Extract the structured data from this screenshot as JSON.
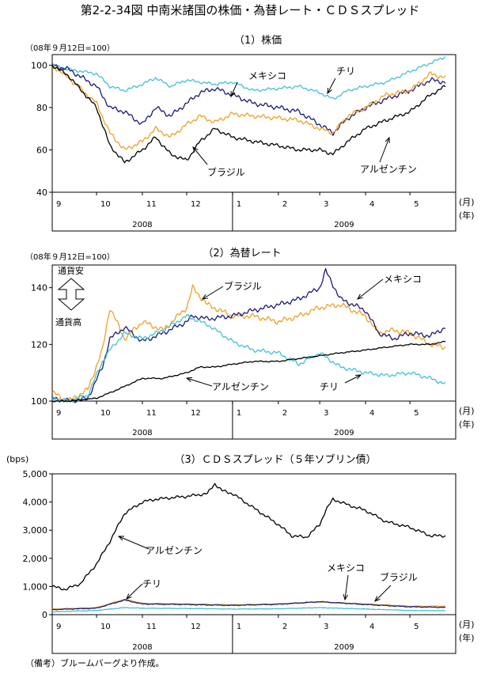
{
  "figure_title": "第2-2-34図 中南米諸国の株価・為替レート・ＣＤＳスプレッド",
  "note": "（備考）ブルームバーグより作成。",
  "month_unit": "(月)",
  "year_unit": "(年)",
  "colors": {
    "mexico": "#1a1a7a",
    "chile": "#40c0d8",
    "brazil": "#f0a020",
    "argentina": "#000000"
  },
  "chart_data": [
    {
      "type": "line",
      "title": "（1）株価",
      "ylabel": "（08年９月12日=100）",
      "ylim": [
        40,
        105
      ],
      "yticks": [
        40,
        60,
        80,
        100
      ],
      "ytick_labels": [
        "40",
        "60",
        "80",
        "100"
      ],
      "x_start": "2008-09-01",
      "x_end": "2009-05-31",
      "month_ticks": [
        {
          "date": "2008-09-01",
          "label": "9"
        },
        {
          "date": "2008-10-01",
          "label": "10"
        },
        {
          "date": "2008-11-01",
          "label": "11"
        },
        {
          "date": "2008-12-01",
          "label": "12"
        },
        {
          "date": "2009-01-01",
          "label": "1"
        },
        {
          "date": "2009-02-01",
          "label": "2"
        },
        {
          "date": "2009-03-01",
          "label": "3"
        },
        {
          "date": "2009-04-01",
          "label": "4"
        },
        {
          "date": "2009-05-01",
          "label": "5"
        }
      ],
      "years": [
        {
          "from": "2008-09-01",
          "to": "2008-12-31",
          "label": "2008"
        },
        {
          "from": "2009-01-01",
          "to": "2009-05-31",
          "label": "2009"
        }
      ],
      "series": [
        {
          "name": "チリ",
          "color": "#40c0d8",
          "dates": [
            "2008-09-01",
            "2008-09-12",
            "2008-10-01",
            "2008-10-10",
            "2008-10-20",
            "2008-11-01",
            "2008-11-10",
            "2008-11-20",
            "2008-12-01",
            "2008-12-10",
            "2008-12-20",
            "2009-01-01",
            "2009-01-15",
            "2009-02-01",
            "2009-02-15",
            "2009-03-01",
            "2009-03-10",
            "2009-03-20",
            "2009-04-01",
            "2009-04-15",
            "2009-05-01",
            "2009-05-15",
            "2009-05-25"
          ],
          "values": [
            100,
            98,
            96,
            90,
            88,
            91,
            94,
            90,
            93,
            92,
            91,
            92,
            88,
            89,
            90,
            87,
            84,
            88,
            90,
            92,
            97,
            101,
            104
          ]
        },
        {
          "name": "メキシコ",
          "color": "#1a1a7a",
          "dates": [
            "2008-09-01",
            "2008-09-12",
            "2008-10-01",
            "2008-10-10",
            "2008-10-20",
            "2008-11-01",
            "2008-11-10",
            "2008-11-20",
            "2008-12-01",
            "2008-12-10",
            "2008-12-20",
            "2009-01-01",
            "2009-01-15",
            "2009-02-01",
            "2009-02-15",
            "2009-03-01",
            "2009-03-10",
            "2009-03-20",
            "2009-04-01",
            "2009-04-15",
            "2009-05-01",
            "2009-05-15",
            "2009-05-25"
          ],
          "values": [
            100,
            98,
            90,
            80,
            78,
            72,
            80,
            76,
            82,
            87,
            89,
            86,
            82,
            80,
            78,
            72,
            68,
            75,
            80,
            84,
            88,
            93,
            92
          ]
        },
        {
          "name": "ブラジル",
          "color": "#f0a020",
          "dates": [
            "2008-09-01",
            "2008-09-12",
            "2008-10-01",
            "2008-10-10",
            "2008-10-20",
            "2008-11-01",
            "2008-11-10",
            "2008-11-20",
            "2008-12-01",
            "2008-12-10",
            "2008-12-20",
            "2009-01-01",
            "2009-01-15",
            "2009-02-01",
            "2009-02-15",
            "2009-03-01",
            "2009-03-10",
            "2009-03-20",
            "2009-04-01",
            "2009-04-15",
            "2009-05-01",
            "2009-05-15",
            "2009-05-25"
          ],
          "values": [
            100,
            94,
            82,
            68,
            60,
            64,
            70,
            66,
            72,
            76,
            73,
            77,
            76,
            75,
            74,
            70,
            68,
            76,
            80,
            86,
            88,
            96,
            94
          ]
        },
        {
          "name": "アルゼンチン",
          "color": "#000000",
          "dates": [
            "2008-09-01",
            "2008-09-12",
            "2008-10-01",
            "2008-10-10",
            "2008-10-20",
            "2008-11-01",
            "2008-11-10",
            "2008-11-20",
            "2008-12-01",
            "2008-12-10",
            "2008-12-20",
            "2009-01-01",
            "2009-01-15",
            "2009-02-01",
            "2009-02-15",
            "2009-03-01",
            "2009-03-10",
            "2009-03-20",
            "2009-04-01",
            "2009-04-15",
            "2009-05-01",
            "2009-05-15",
            "2009-05-25"
          ],
          "values": [
            100,
            95,
            80,
            62,
            54,
            60,
            66,
            58,
            55,
            64,
            70,
            66,
            64,
            62,
            60,
            60,
            58,
            64,
            70,
            74,
            78,
            86,
            90
          ]
        }
      ],
      "series_labels": [
        "メキシコ",
        "チリ",
        "ブラジル",
        "アルゼンチン"
      ]
    },
    {
      "type": "line",
      "title": "（2）為替レート",
      "ylabel": "（08年９月12日=100）",
      "ylim": [
        100,
        148
      ],
      "yticks": [
        100,
        120,
        140
      ],
      "ytick_labels": [
        "100",
        "120",
        "140"
      ],
      "x_start": "2008-09-01",
      "x_end": "2009-05-31",
      "month_ticks": [
        {
          "date": "2008-09-01",
          "label": "9"
        },
        {
          "date": "2008-10-01",
          "label": "10"
        },
        {
          "date": "2008-11-01",
          "label": "11"
        },
        {
          "date": "2008-12-01",
          "label": "12"
        },
        {
          "date": "2009-01-01",
          "label": "1"
        },
        {
          "date": "2009-02-01",
          "label": "2"
        },
        {
          "date": "2009-03-01",
          "label": "3"
        },
        {
          "date": "2009-04-01",
          "label": "4"
        },
        {
          "date": "2009-05-01",
          "label": "5"
        }
      ],
      "years": [
        {
          "from": "2008-09-01",
          "to": "2008-12-31",
          "label": "2008"
        },
        {
          "from": "2009-01-01",
          "to": "2009-05-31",
          "label": "2009"
        }
      ],
      "annotation_up": "通貨安",
      "annotation_down": "通貨高",
      "series": [
        {
          "name": "ブラジル",
          "color": "#f0a020",
          "dates": [
            "2008-09-01",
            "2008-09-12",
            "2008-09-25",
            "2008-10-05",
            "2008-10-10",
            "2008-10-20",
            "2008-11-01",
            "2008-11-15",
            "2008-12-01",
            "2008-12-05",
            "2008-12-15",
            "2009-01-01",
            "2009-01-15",
            "2009-02-01",
            "2009-02-15",
            "2009-03-01",
            "2009-03-15",
            "2009-04-01",
            "2009-04-10",
            "2009-04-20",
            "2009-05-01",
            "2009-05-15",
            "2009-05-25"
          ],
          "values": [
            103,
            100,
            104,
            118,
            133,
            122,
            128,
            125,
            133,
            140,
            134,
            130,
            130,
            128,
            130,
            133,
            134,
            130,
            124,
            125,
            124,
            120,
            119
          ]
        },
        {
          "name": "メキシコ",
          "color": "#1a1a7a",
          "dates": [
            "2008-09-01",
            "2008-09-12",
            "2008-09-25",
            "2008-10-05",
            "2008-10-10",
            "2008-10-20",
            "2008-11-01",
            "2008-11-15",
            "2008-12-01",
            "2008-12-05",
            "2008-12-15",
            "2009-01-01",
            "2009-01-15",
            "2009-02-01",
            "2009-02-15",
            "2009-03-01",
            "2009-03-05",
            "2009-03-15",
            "2009-04-01",
            "2009-04-10",
            "2009-04-20",
            "2009-05-01",
            "2009-05-15",
            "2009-05-25"
          ],
          "values": [
            101,
            100,
            101,
            112,
            122,
            126,
            121,
            124,
            128,
            130,
            129,
            130,
            132,
            134,
            136,
            140,
            146,
            136,
            132,
            124,
            122,
            124,
            123,
            126
          ]
        },
        {
          "name": "チリ",
          "color": "#40c0d8",
          "dates": [
            "2008-09-01",
            "2008-09-12",
            "2008-09-25",
            "2008-10-05",
            "2008-10-10",
            "2008-10-20",
            "2008-11-01",
            "2008-11-15",
            "2008-12-01",
            "2008-12-15",
            "2009-01-01",
            "2009-01-15",
            "2009-02-01",
            "2009-02-15",
            "2009-03-01",
            "2009-03-15",
            "2009-04-01",
            "2009-04-15",
            "2009-05-01",
            "2009-05-15",
            "2009-05-25"
          ],
          "values": [
            101,
            100,
            102,
            114,
            118,
            124,
            122,
            125,
            130,
            127,
            121,
            118,
            117,
            113,
            117,
            112,
            110,
            109,
            110,
            108,
            106
          ]
        },
        {
          "name": "アルゼンチン",
          "color": "#000000",
          "dates": [
            "2008-09-01",
            "2008-09-12",
            "2008-10-01",
            "2008-10-15",
            "2008-11-01",
            "2008-11-15",
            "2008-12-01",
            "2008-12-10",
            "2008-12-20",
            "2009-01-01",
            "2009-01-15",
            "2009-02-01",
            "2009-02-15",
            "2009-03-01",
            "2009-03-15",
            "2009-04-01",
            "2009-04-15",
            "2009-05-01",
            "2009-05-15",
            "2009-05-25"
          ],
          "values": [
            100,
            100,
            101,
            104,
            108,
            108,
            110,
            112,
            112,
            113,
            114,
            114,
            115,
            116,
            117,
            118,
            119,
            120,
            120,
            121
          ]
        }
      ],
      "series_labels": [
        "ブラジル",
        "メキシコ",
        "アルゼンチン",
        "チリ"
      ]
    },
    {
      "type": "line",
      "title": "（3）ＣＤＳスプレッド（５年ソブリン債）",
      "ylabel": "(bps)",
      "ylim": [
        0,
        5000
      ],
      "yticks": [
        0,
        1000,
        2000,
        3000,
        4000,
        5000
      ],
      "ytick_labels": [
        "0",
        "1,000",
        "2,000",
        "3,000",
        "4,000",
        "5,000"
      ],
      "x_start": "2008-09-01",
      "x_end": "2009-05-31",
      "month_ticks": [
        {
          "date": "2008-09-01",
          "label": "9"
        },
        {
          "date": "2008-10-01",
          "label": "10"
        },
        {
          "date": "2008-11-01",
          "label": "11"
        },
        {
          "date": "2008-12-01",
          "label": "12"
        },
        {
          "date": "2009-01-01",
          "label": "1"
        },
        {
          "date": "2009-02-01",
          "label": "2"
        },
        {
          "date": "2009-03-01",
          "label": "3"
        },
        {
          "date": "2009-04-01",
          "label": "4"
        },
        {
          "date": "2009-05-01",
          "label": "5"
        }
      ],
      "years": [
        {
          "from": "2008-09-01",
          "to": "2008-12-31",
          "label": "2008"
        },
        {
          "from": "2009-01-01",
          "to": "2009-05-31",
          "label": "2009"
        }
      ],
      "series": [
        {
          "name": "アルゼンチン",
          "color": "#000000",
          "dates": [
            "2008-09-01",
            "2008-09-10",
            "2008-09-20",
            "2008-10-01",
            "2008-10-10",
            "2008-10-20",
            "2008-11-01",
            "2008-11-10",
            "2008-11-20",
            "2008-12-01",
            "2008-12-15",
            "2008-12-20",
            "2008-12-25",
            "2009-01-01",
            "2009-01-15",
            "2009-02-01",
            "2009-02-10",
            "2009-02-20",
            "2009-03-01",
            "2009-03-05",
            "2009-03-10",
            "2009-03-20",
            "2009-04-01",
            "2009-04-15",
            "2009-05-01",
            "2009-05-15",
            "2009-05-25"
          ],
          "values": [
            1000,
            900,
            1100,
            1800,
            2600,
            3600,
            4000,
            4100,
            4150,
            4200,
            4300,
            4650,
            4400,
            4300,
            3800,
            3200,
            2800,
            2750,
            3200,
            3700,
            4100,
            3900,
            3700,
            3300,
            3100,
            2800,
            2800
          ]
        },
        {
          "name": "ブラジル",
          "color": "#f0a020",
          "dates": [
            "2008-09-01",
            "2008-10-01",
            "2008-10-20",
            "2008-11-01",
            "2008-12-01",
            "2009-01-01",
            "2009-02-01",
            "2009-03-01",
            "2009-04-01",
            "2009-05-01",
            "2009-05-25"
          ],
          "values": [
            200,
            250,
            550,
            400,
            380,
            350,
            380,
            450,
            380,
            300,
            300
          ]
        },
        {
          "name": "メキシコ",
          "color": "#1a1a7a",
          "dates": [
            "2008-09-01",
            "2008-10-01",
            "2008-10-20",
            "2008-11-01",
            "2008-12-01",
            "2009-01-01",
            "2009-02-01",
            "2009-03-01",
            "2009-04-01",
            "2009-05-01",
            "2009-05-25"
          ],
          "values": [
            180,
            230,
            520,
            380,
            360,
            330,
            370,
            460,
            360,
            280,
            260
          ]
        },
        {
          "name": "チリ",
          "color": "#40c0d8",
          "dates": [
            "2008-09-01",
            "2008-10-01",
            "2008-10-20",
            "2008-11-01",
            "2008-12-01",
            "2009-01-01",
            "2009-02-01",
            "2009-03-01",
            "2009-04-01",
            "2009-05-01",
            "2009-05-25"
          ],
          "values": [
            100,
            150,
            250,
            230,
            220,
            200,
            210,
            250,
            200,
            150,
            140
          ]
        }
      ],
      "series_labels": [
        "アルゼンチン",
        "チリ",
        "メキシコ",
        "ブラジル"
      ]
    }
  ]
}
